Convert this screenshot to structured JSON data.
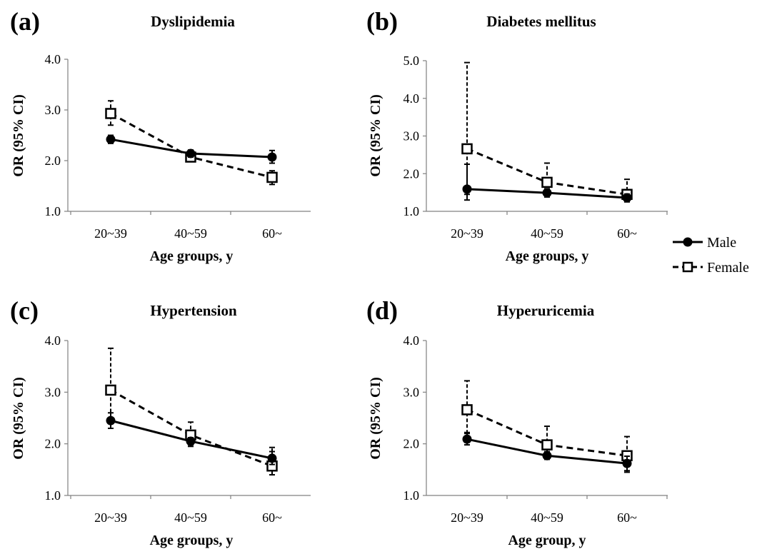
{
  "legend": {
    "male_label": "Male",
    "female_label": "Female"
  },
  "chart_data": [
    {
      "type": "line",
      "panel_label": "(a)",
      "title": "Dyslipidemia",
      "xlabel": "Age groups, y",
      "ylabel": "OR (95% CI)",
      "categories": [
        "20~39",
        "40~59",
        "60~"
      ],
      "ylim": [
        1.0,
        4.0
      ],
      "yticks": [
        "1.0",
        "2.0",
        "3.0",
        "4.0"
      ],
      "series": [
        {
          "name": "Male",
          "values": [
            2.42,
            2.14,
            2.07
          ],
          "ci_low": [
            2.34,
            2.07,
            1.95
          ],
          "ci_high": [
            2.5,
            2.21,
            2.2
          ],
          "style": "solid",
          "marker": "filled-circle"
        },
        {
          "name": "Female",
          "values": [
            2.93,
            2.07,
            1.67
          ],
          "ci_low": [
            2.7,
            1.98,
            1.53
          ],
          "ci_high": [
            3.18,
            2.16,
            1.8
          ],
          "style": "dashed",
          "marker": "open-square"
        }
      ]
    },
    {
      "type": "line",
      "panel_label": "(b)",
      "title": "Diabetes mellitus",
      "xlabel": "Age groups, y",
      "ylabel": "OR (95% CI)",
      "categories": [
        "20~39",
        "40~59",
        "60~"
      ],
      "ylim": [
        1.0,
        5.0
      ],
      "yticks": [
        "1.0",
        "2.0",
        "3.0",
        "4.0",
        "5.0"
      ],
      "series": [
        {
          "name": "Male",
          "values": [
            1.59,
            1.49,
            1.36
          ],
          "ci_low": [
            1.3,
            1.38,
            1.26
          ],
          "ci_high": [
            2.25,
            1.6,
            1.46
          ],
          "style": "solid",
          "marker": "filled-circle"
        },
        {
          "name": "Female",
          "values": [
            2.66,
            1.77,
            1.45
          ],
          "ci_low": [
            1.45,
            1.5,
            1.25
          ],
          "ci_high": [
            4.95,
            2.28,
            1.85
          ],
          "style": "dashed",
          "marker": "open-square"
        }
      ]
    },
    {
      "type": "line",
      "panel_label": "(c)",
      "title": "Hypertension",
      "xlabel": "Age groups, y",
      "ylabel": "OR (95% CI)",
      "categories": [
        "20~39",
        "40~59",
        "60~"
      ],
      "ylim": [
        1.0,
        4.0
      ],
      "yticks": [
        "1.0",
        "2.0",
        "3.0",
        "4.0"
      ],
      "series": [
        {
          "name": "Male",
          "values": [
            2.45,
            2.05,
            1.72
          ],
          "ci_low": [
            2.3,
            1.98,
            1.6
          ],
          "ci_high": [
            2.6,
            2.12,
            1.85
          ],
          "style": "solid",
          "marker": "filled-circle"
        },
        {
          "name": "Female",
          "values": [
            3.04,
            2.17,
            1.57
          ],
          "ci_low": [
            2.5,
            1.95,
            1.4
          ],
          "ci_high": [
            3.85,
            2.42,
            1.93
          ],
          "style": "dashed",
          "marker": "open-square"
        }
      ]
    },
    {
      "type": "line",
      "panel_label": "(d)",
      "title": "Hyperuricemia",
      "xlabel": "Age group, y",
      "ylabel": "OR (95% CI)",
      "categories": [
        "20~39",
        "40~59",
        "60~"
      ],
      "ylim": [
        1.0,
        4.0
      ],
      "yticks": [
        "1.0",
        "2.0",
        "3.0",
        "4.0"
      ],
      "series": [
        {
          "name": "Male",
          "values": [
            2.09,
            1.77,
            1.62
          ],
          "ci_low": [
            1.98,
            1.7,
            1.48
          ],
          "ci_high": [
            2.22,
            1.85,
            1.76
          ],
          "style": "solid",
          "marker": "filled-circle"
        },
        {
          "name": "Female",
          "values": [
            2.66,
            1.98,
            1.77
          ],
          "ci_low": [
            2.2,
            1.7,
            1.45
          ],
          "ci_high": [
            3.22,
            2.34,
            2.14
          ],
          "style": "dashed",
          "marker": "open-square"
        }
      ]
    }
  ]
}
